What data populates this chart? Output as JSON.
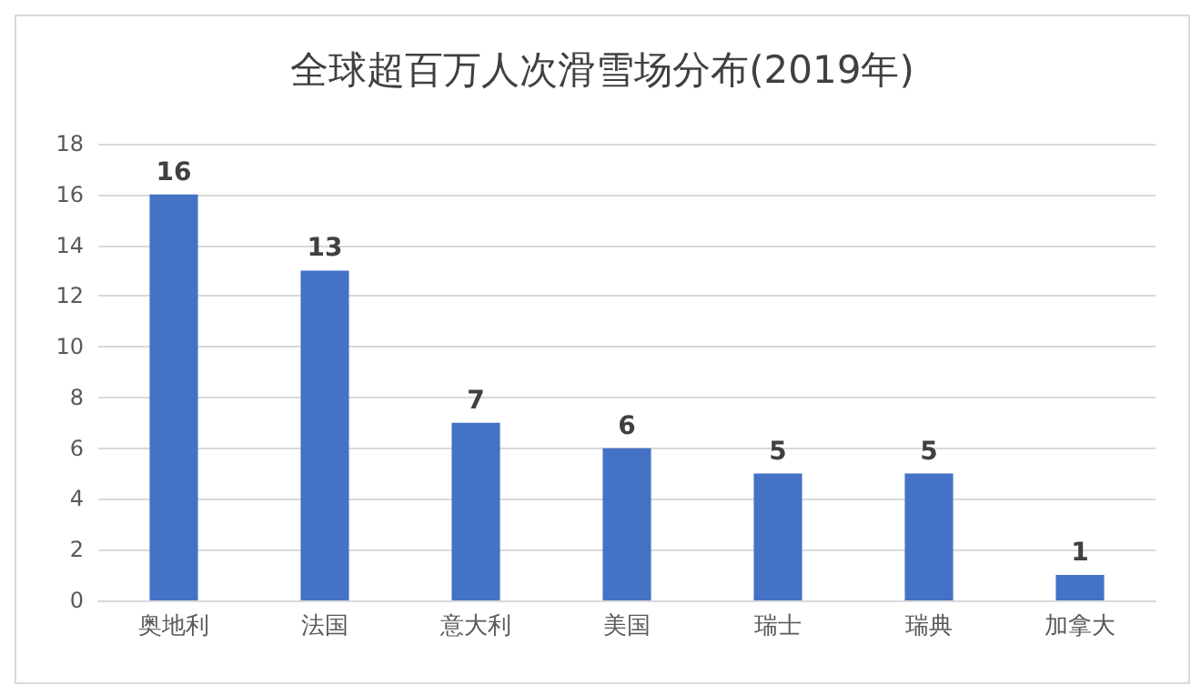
{
  "chart_data": {
    "type": "bar",
    "title": "全球超百万人次滑雪场分布(2019年)",
    "categories": [
      "奥地利",
      "法国",
      "意大利",
      "美国",
      "瑞士",
      "瑞典",
      "加拿大"
    ],
    "values": [
      16,
      13,
      7,
      6,
      5,
      5,
      1
    ],
    "color": "#4472c4",
    "ylim": [
      0,
      18
    ],
    "yticks": [
      0,
      2,
      4,
      6,
      8,
      10,
      12,
      14,
      16,
      18
    ],
    "grid": "y",
    "data_labels": true
  }
}
